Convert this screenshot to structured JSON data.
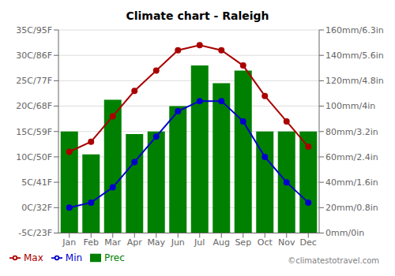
{
  "chart_data": {
    "type": "bar",
    "title": "Climate chart - Raleigh",
    "categories": [
      "Jan",
      "Feb",
      "Mar",
      "Apr",
      "May",
      "Jun",
      "Jul",
      "Aug",
      "Sep",
      "Oct",
      "Nov",
      "Dec"
    ],
    "series": [
      {
        "name": "Prec",
        "type": "bar",
        "axis": "y2",
        "color": "#008000",
        "values": [
          80,
          62,
          105,
          78,
          80,
          100,
          132,
          118,
          128,
          80,
          80,
          80
        ]
      },
      {
        "name": "Min",
        "type": "line",
        "marker": "circle",
        "color": "#0000cc",
        "values": [
          0,
          1,
          4,
          9,
          14,
          19,
          21,
          21,
          17,
          10,
          5,
          1
        ]
      },
      {
        "name": "Max",
        "type": "line",
        "marker": "circle",
        "color": "#aa0000",
        "values": [
          11,
          13,
          18,
          23,
          27,
          31,
          32,
          31,
          28,
          22,
          17,
          12
        ]
      }
    ],
    "ylim": [
      -5,
      35
    ],
    "yticks": [
      {
        "value": -5,
        "label": "-5C/23F"
      },
      {
        "value": 0,
        "label": "0C/32F"
      },
      {
        "value": 5,
        "label": "5C/41F"
      },
      {
        "value": 10,
        "label": "10C/50F"
      },
      {
        "value": 15,
        "label": "15C/59F"
      },
      {
        "value": 20,
        "label": "20C/68F"
      },
      {
        "value": 25,
        "label": "25C/77F"
      },
      {
        "value": 30,
        "label": "30C/86F"
      },
      {
        "value": 35,
        "label": "35C/95F"
      }
    ],
    "y2lim": [
      0,
      160
    ],
    "y2ticks": [
      {
        "value": 0,
        "label": "0mm/0in"
      },
      {
        "value": 20,
        "label": "20mm/0.8in"
      },
      {
        "value": 40,
        "label": "40mm/1.6in"
      },
      {
        "value": 60,
        "label": "60mm/2.4in"
      },
      {
        "value": 80,
        "label": "80mm/3.2in"
      },
      {
        "value": 100,
        "label": "100mm/4in"
      },
      {
        "value": 120,
        "label": "120mm/4.8in"
      },
      {
        "value": 140,
        "label": "140mm/5.6in"
      },
      {
        "value": 160,
        "label": "160mm/6.3in"
      }
    ],
    "grid": true,
    "legend": "lower left",
    "annotations": [
      "©climatestotravel.com"
    ]
  }
}
